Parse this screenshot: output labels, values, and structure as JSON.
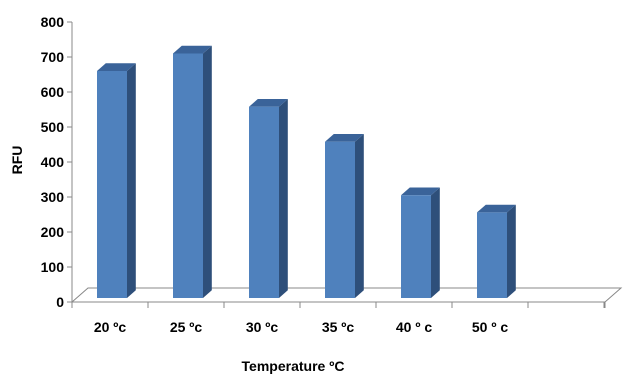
{
  "chart_data": {
    "type": "bar",
    "style": "3d-column",
    "categories": [
      "20 ºc",
      "25 ºc",
      "30 ºc",
      "35 ºc",
      "40 º c",
      "50 º c"
    ],
    "values": [
      660,
      710,
      558,
      458,
      305,
      256
    ],
    "xlabel": "Temperature ºC",
    "ylabel": "RFU",
    "ylim": [
      0,
      800
    ],
    "yticks": [
      "0",
      "100",
      "200",
      "300",
      "400",
      "500",
      "600",
      "700",
      "800"
    ],
    "grid": false,
    "legend": "none",
    "colors": {
      "bar_front": "#4F81BD",
      "bar_side": "#2E4F7A",
      "bar_top": "#3A6399",
      "axis": "#888888"
    }
  }
}
